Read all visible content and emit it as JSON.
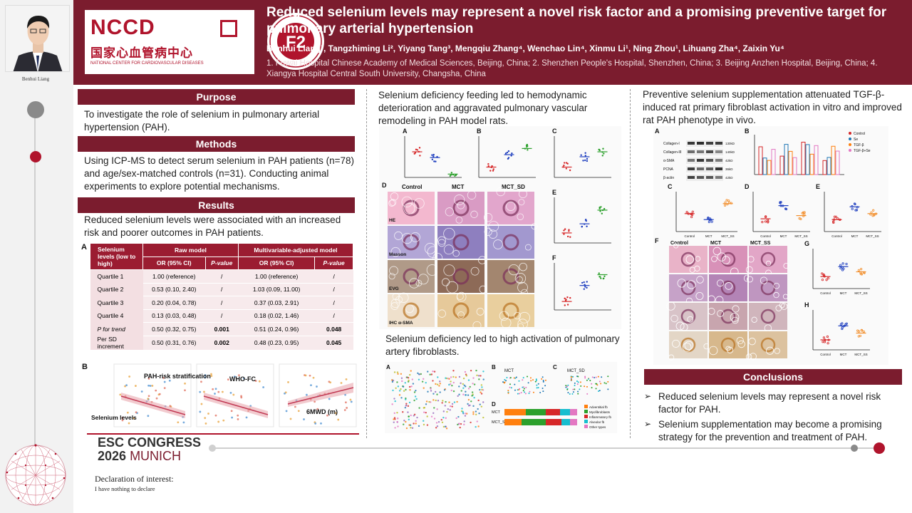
{
  "presenter": {
    "name": "Benhui Liang"
  },
  "header": {
    "title": "Reduced selenium levels may represent a novel risk factor and a promising preventive target for pulmonary arterial hypertension",
    "authors": "Benhui Liang¹, Tangzhiming Li², Yiyang Tang³, Mengqiu Zhang⁴, Wenchao Lin⁴, Xinmu Li¹, Ning Zhou¹, Lihuang Zha⁴, Zaixin Yu⁴",
    "affiliations": "1. Fuwai Hospital Chinese Academy of Medical Sciences, Beijing, China; 2. Shenzhen People's Hospital, Shenzhen, China; 3. Beijing Anzhen Hospital, Beijing, China; 4. Xiangya Hospital Central South University, Changsha, China",
    "logo": {
      "abbr": "NCCD",
      "chinese": "国家心血管病中心",
      "english": "NATIONAL CENTER FOR CARDIOVASCULAR DISEASES"
    },
    "second_logo": "F2"
  },
  "purpose": {
    "heading": "Purpose",
    "text": "To investigate the role of selenium in pulmonary arterial hypertension (PAH)."
  },
  "methods": {
    "heading": "Methods",
    "text": "Using ICP-MS to detect serum selenium in PAH patients (n=78) and age/sex-matched controls (n=31). Conducting animal experiments to explore potential mechanisms."
  },
  "results": {
    "heading": "Results",
    "text": "Reduced selenium levels were associated with an increased risk and poorer outcomes in PAH patients.",
    "table_label": "A",
    "table": {
      "col_header": "Selenium levels (low to high)",
      "group1": "Raw model",
      "group2": "Multivariable-adjusted model",
      "sub": [
        "OR (95% CI)",
        "P-value",
        "OR (95% CI)",
        "P-value"
      ],
      "rows": [
        [
          "Quartile 1",
          "1.00 (reference)",
          "/",
          "1.00 (reference)",
          "/"
        ],
        [
          "Quartile 2",
          "0.53 (0.10, 2.40)",
          "/",
          "1.03 (0.09, 11.00)",
          "/"
        ],
        [
          "Quartile 3",
          "0.20 (0.04, 0.78)",
          "/",
          "0.37 (0.03, 2.91)",
          "/"
        ],
        [
          "Quartile 4",
          "0.13 (0.03, 0.48)",
          "/",
          "0.18 (0.02, 1.46)",
          "/"
        ],
        [
          "P for trend",
          "0.50 (0.32, 0.75)",
          "0.001",
          "0.51 (0.24, 0.96)",
          "0.048"
        ],
        [
          "Per SD increment",
          "0.50 (0.31, 0.76)",
          "0.002",
          "0.48 (0.23, 0.95)",
          "0.045"
        ]
      ]
    },
    "scatter_label": "B",
    "scatter_titles": [
      "PAH-risk stratification",
      "WHO-FC",
      "6MWD (m)"
    ],
    "scatter_axis": "Selenium levels"
  },
  "middle": {
    "text1": "Selenium deficiency feeding led to hemodynamic deterioration and aggravated pulmonary vascular remodeling in PAH model rats.",
    "text2": "Selenium deficiency led to high activation of pulmonary artery fibroblasts.",
    "panels": [
      "A",
      "B",
      "C",
      "D",
      "E",
      "F"
    ],
    "groups": [
      "Control",
      "MCT",
      "MCT_SD"
    ],
    "stains": [
      "HE",
      "Masson",
      "EVG",
      "IHC α-SMA"
    ],
    "umap_groups": [
      "MCT",
      "MCT_SD"
    ],
    "legend": [
      "Adventitial fb",
      "Myofibroblasts",
      "Inflammatory fb",
      "Alveolar fb",
      "Other types"
    ]
  },
  "right": {
    "text": "Preventive selenium supplementation attenuated TGF-β-induced rat primary fibroblast activation in vitro and improved rat PAH phenotype in vivo.",
    "panels": [
      "A",
      "B",
      "C",
      "D",
      "E",
      "F",
      "G",
      "H"
    ],
    "groups": [
      "Control",
      "MCT",
      "MCT_SS"
    ],
    "blot_rows": [
      "Collagen-I",
      "Collagen-III",
      "α-SMA",
      "PCNA",
      "β-actin"
    ],
    "blot_kda": [
      "130kD",
      "140kD",
      "42kD",
      "36kD",
      "42kD"
    ],
    "blot_legend": [
      "Control",
      "Se",
      "TGF-β",
      "TGF-β+Se"
    ]
  },
  "conclusions": {
    "heading": "Conclusions",
    "items": [
      "Reduced selenium levels may represent a novel risk factor for PAH.",
      "Selenium supplementation may become a promising strategy for the prevention and treatment of PAH."
    ]
  },
  "footer": {
    "congress_line1": "ESC CONGRESS",
    "congress_year": "2026",
    "congress_city": "MUNICH",
    "declaration": "Declaration of interest:",
    "declaration_text": "I have nothing to declare"
  },
  "colors": {
    "brand": "#7b1c2e",
    "accent": "#b0142c",
    "control": "#d62728",
    "mct": "#1f3fbf",
    "treated": "#2ca02c",
    "ss": "#f28e2b"
  }
}
